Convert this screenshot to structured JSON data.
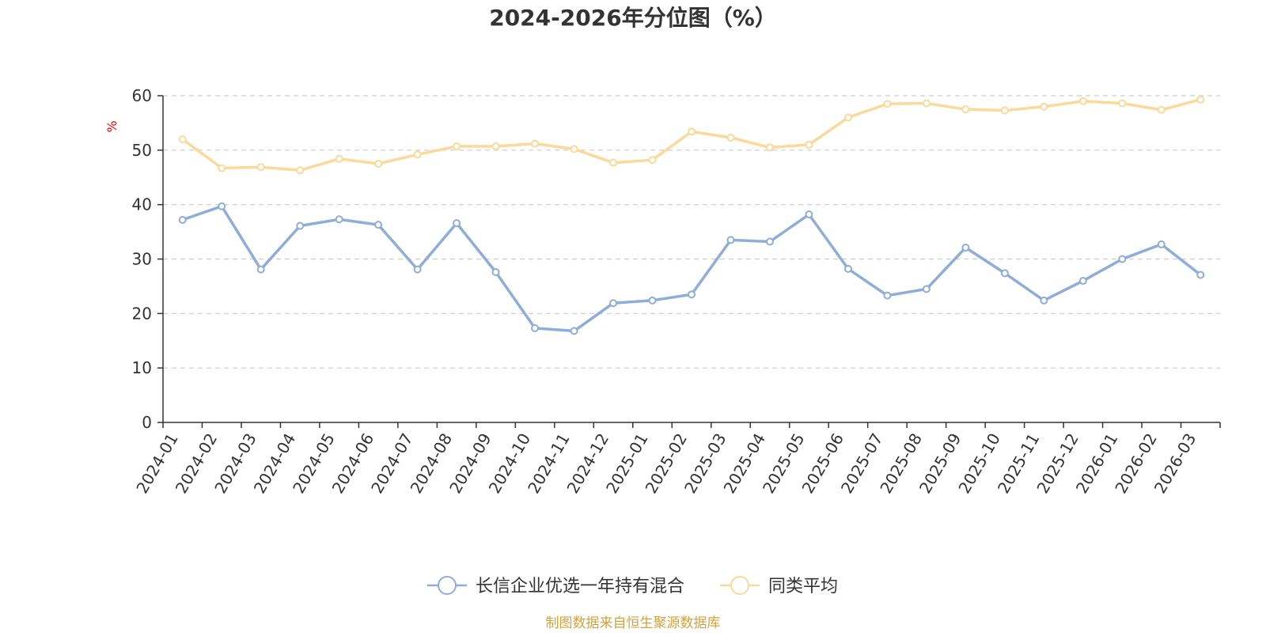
{
  "chart_data": {
    "type": "line",
    "title": "2024-2026年分位图（%）",
    "ylabel": "%",
    "xlabel": "",
    "ylim": [
      0,
      60
    ],
    "y_ticks": [
      0,
      10,
      20,
      30,
      40,
      50,
      60
    ],
    "grid": true,
    "legend_position": "bottom-center",
    "categories": [
      "2024-01",
      "2024-02",
      "2024-03",
      "2024-04",
      "2024-05",
      "2024-06",
      "2024-07",
      "2024-08",
      "2024-09",
      "2024-10",
      "2024-11",
      "2024-12",
      "2025-01",
      "2025-02",
      "2025-03",
      "2025-04",
      "2025-05",
      "2025-06",
      "2025-07",
      "2025-08",
      "2025-09",
      "2025-10",
      "2025-11",
      "2025-12",
      "2026-01",
      "2026-02",
      "2026-03"
    ],
    "series": [
      {
        "name": "长信企业优选一年持有混合",
        "color": "#8eadd8",
        "values": [
          37.2,
          39.7,
          28.1,
          36.1,
          37.3,
          36.3,
          28.1,
          36.6,
          27.6,
          17.3,
          16.8,
          21.9,
          22.4,
          23.5,
          33.5,
          33.2,
          38.2,
          28.2,
          23.3,
          24.5,
          32.1,
          27.4,
          22.4,
          26.0,
          30.0,
          32.7,
          27.1
        ]
      },
      {
        "name": "同类平均",
        "color": "#fbd99a",
        "values": [
          52.0,
          46.7,
          46.9,
          46.3,
          48.4,
          47.5,
          49.2,
          50.7,
          50.7,
          51.2,
          50.2,
          47.7,
          48.2,
          53.4,
          52.3,
          50.5,
          51.0,
          56.0,
          58.5,
          58.6,
          57.5,
          57.3,
          58.0,
          59.0,
          58.6,
          57.4,
          59.3
        ]
      }
    ],
    "source": "制图数据来自恒生聚源数据库",
    "colors": {
      "axis": "#333333",
      "grid": "#cccccc",
      "unit_label": "#ff0000",
      "source_text": "#d4a23c"
    }
  }
}
